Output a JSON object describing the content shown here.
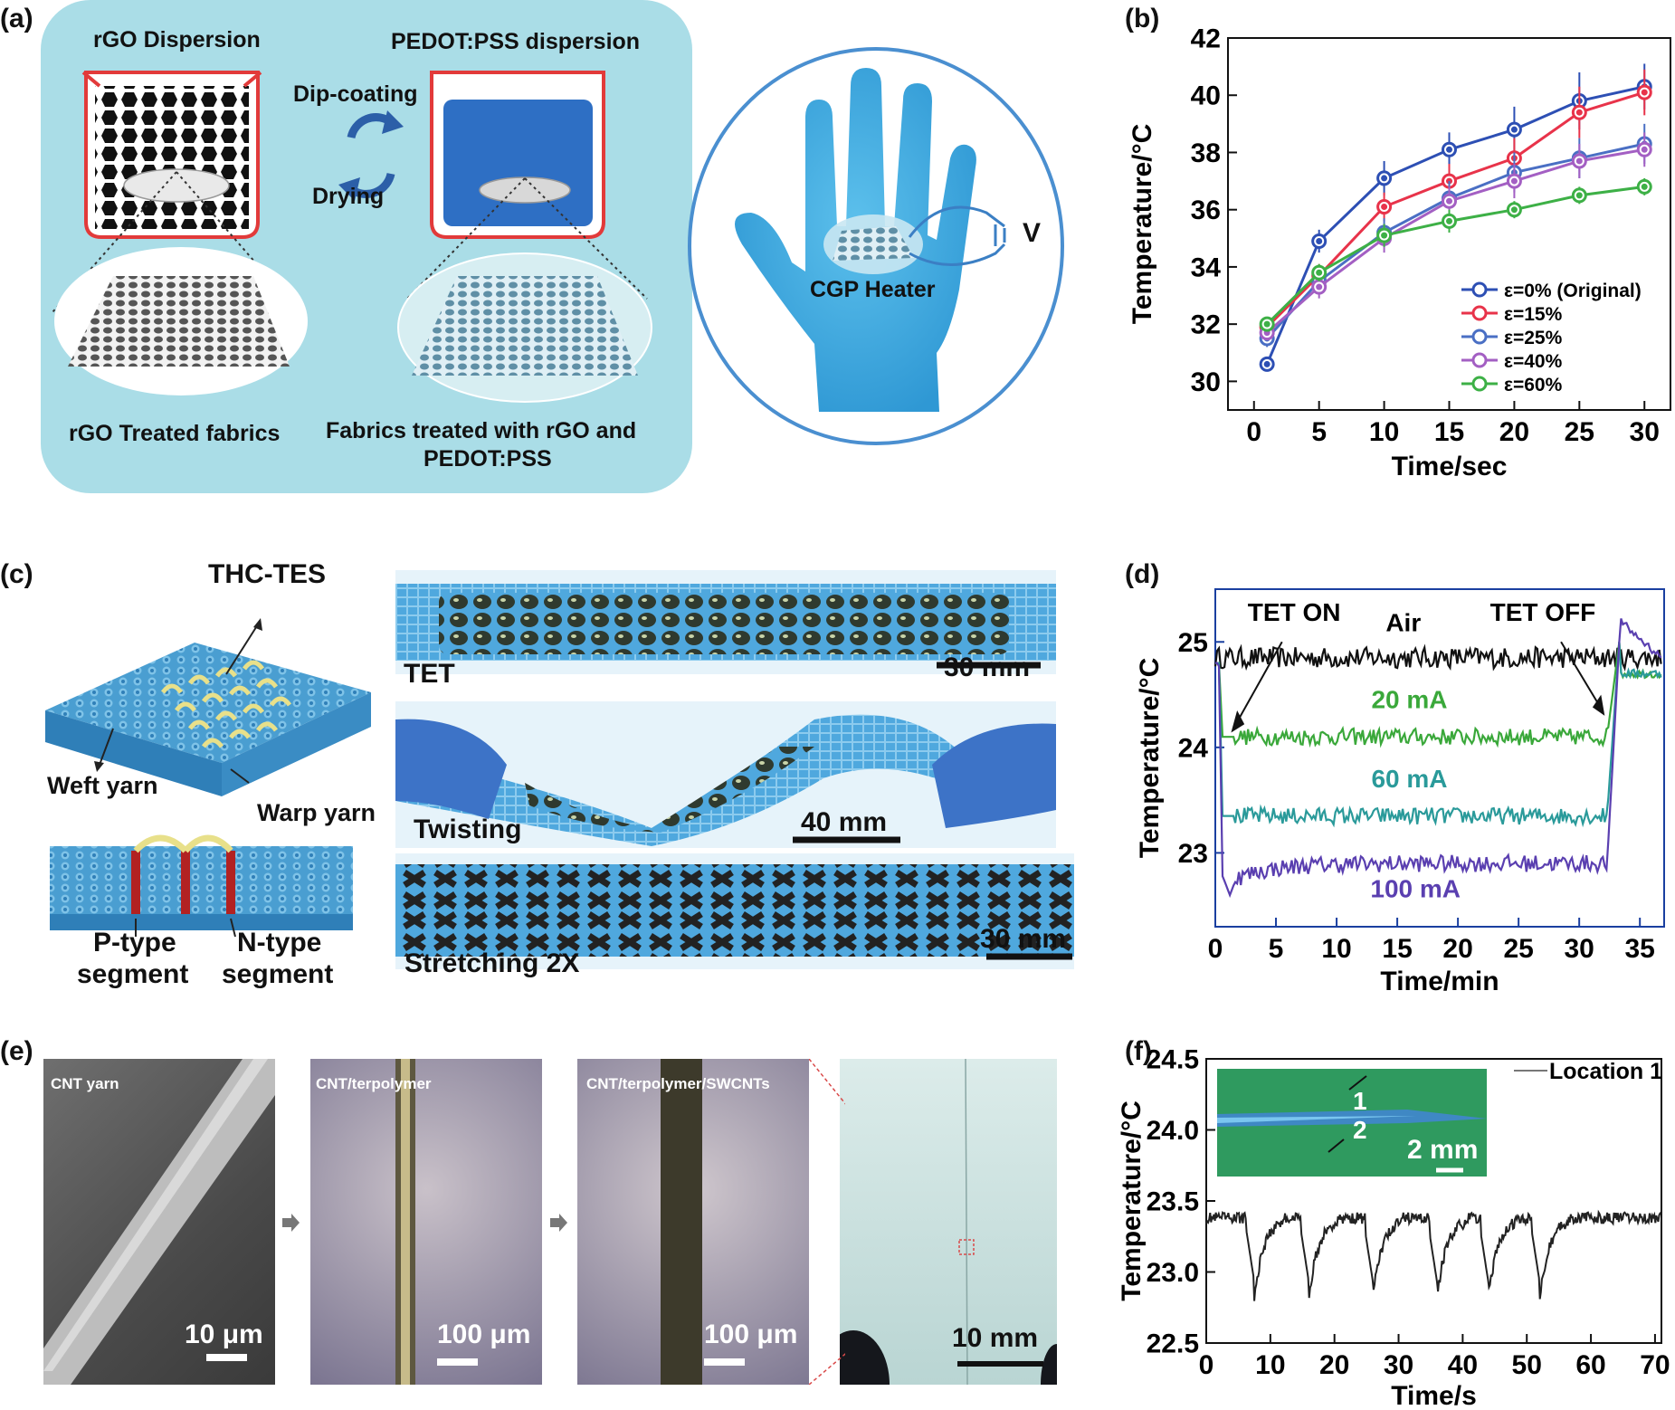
{
  "panel_labels": [
    "(a)",
    "(b)",
    "(c)",
    "(d)",
    "(e)",
    "(f)"
  ],
  "panel_a": {
    "rgo_dispersion": "rGO Dispersion",
    "pedot_dispersion": "PEDOT:PSS dispersion",
    "dip_coating": "Dip-coating",
    "drying": "Drying",
    "rgo_treated": "rGO Treated fabrics",
    "treated_line1": "Fabrics treated with rGO and",
    "treated_line2": "PEDOT:PSS",
    "cgp_heater": "CGP Heater",
    "voltage": "V",
    "colors": {
      "panel_bg": "#a9dde6",
      "glove": "#3fa9dd",
      "circle": "#4a8fd0"
    }
  },
  "panel_c": {
    "thc_tes": "THC-TES",
    "weft_yarn": "Weft yarn",
    "warp_yarn": "Warp yarn",
    "p_type_1": "P-type",
    "p_type_2": "segment",
    "n_type_1": "N-type",
    "n_type_2": "segment",
    "tet": "TET",
    "twisting": "Twisting",
    "stretching": "Stretching 2X",
    "scale_30mm_a": "30 mm",
    "scale_40mm": "40 mm",
    "scale_30mm_b": "30 mm"
  },
  "panel_e": {
    "img1_title": "CNT yarn",
    "img1_scale": "10 μm",
    "img2_title": "CNT/terpolymer",
    "img2_scale": "100 μm",
    "img3_title": "CNT/terpolymer/SWCNTs",
    "img3_scale": "100 μm",
    "img4_scale": "10 mm"
  },
  "chart_data": [
    {
      "id": "b",
      "type": "line",
      "xlabel": "Time/sec",
      "ylabel": "Temperature/°C",
      "xlim": [
        -2,
        32
      ],
      "ylim": [
        29,
        42
      ],
      "xticks": [
        0,
        5,
        10,
        15,
        20,
        25,
        30
      ],
      "yticks": [
        30,
        32,
        34,
        36,
        38,
        40,
        42
      ],
      "x": [
        1,
        5,
        10,
        15,
        20,
        25,
        30
      ],
      "legend_position": "right",
      "series": [
        {
          "name": "ε=0% (Original)",
          "color": "#2d4fb4",
          "values": [
            30.6,
            34.9,
            37.1,
            38.1,
            38.8,
            39.8,
            40.3
          ],
          "err": [
            0.2,
            0.4,
            0.6,
            0.6,
            0.8,
            1.0,
            0.8
          ]
        },
        {
          "name": "ε=15%",
          "color": "#e8334a",
          "values": [
            31.9,
            33.7,
            36.1,
            37.0,
            37.8,
            39.4,
            40.1
          ],
          "err": [
            0.2,
            0.4,
            0.5,
            0.6,
            0.7,
            0.9,
            0.8
          ]
        },
        {
          "name": "ε=25%",
          "color": "#4a6fc4",
          "values": [
            31.5,
            33.5,
            35.2,
            36.4,
            37.3,
            37.8,
            38.3
          ],
          "err": [
            0.3,
            0.4,
            0.5,
            0.6,
            0.7,
            0.7,
            0.7
          ]
        },
        {
          "name": "ε=40%",
          "color": "#a35fc3",
          "values": [
            31.7,
            33.3,
            35.0,
            36.3,
            37.0,
            37.7,
            38.1
          ],
          "err": [
            0.2,
            0.4,
            0.5,
            0.5,
            0.6,
            0.6,
            0.6
          ]
        },
        {
          "name": "ε=60%",
          "color": "#3db046",
          "values": [
            32.0,
            33.8,
            35.1,
            35.6,
            36.0,
            36.5,
            36.8
          ],
          "err": [
            0.2,
            0.3,
            0.4,
            0.4,
            0.3,
            0.3,
            0.3
          ]
        }
      ]
    },
    {
      "id": "d",
      "type": "line",
      "xlabel": "Time/min",
      "ylabel": "Temperature/°C",
      "xlim": [
        0,
        37
      ],
      "ylim": [
        22.3,
        25.5
      ],
      "xticks": [
        0,
        5,
        10,
        15,
        20,
        25,
        30,
        35
      ],
      "yticks": [
        23,
        24,
        25
      ],
      "annotations": [
        "TET ON",
        "TET OFF",
        "Air"
      ],
      "series": [
        {
          "name": "Air",
          "color": "#111111",
          "level": 24.85
        },
        {
          "name": "20 mA",
          "color": "#3aa83a",
          "level": 24.1
        },
        {
          "name": "60 mA",
          "color": "#2a9a9a",
          "level": 23.35
        },
        {
          "name": "100 mA",
          "color": "#5a3fb0",
          "level": 22.9
        }
      ]
    },
    {
      "id": "f",
      "type": "line",
      "xlabel": "Time/s",
      "ylabel": "Temperature/°C",
      "xlim": [
        0,
        71
      ],
      "ylim": [
        22.5,
        24.5
      ],
      "xticks": [
        0,
        10,
        20,
        30,
        40,
        50,
        60,
        70
      ],
      "yticks": [
        22.5,
        23.0,
        23.5,
        24.0,
        24.5
      ],
      "baseline": 23.38,
      "dip_times": [
        7.5,
        16,
        26,
        36,
        44,
        52
      ],
      "dip_min": 22.82,
      "inset": {
        "label_1": "1",
        "label_2": "2",
        "scale": "2 mm"
      },
      "series": [
        {
          "name": "Location 1",
          "color": "#222222"
        }
      ]
    }
  ]
}
